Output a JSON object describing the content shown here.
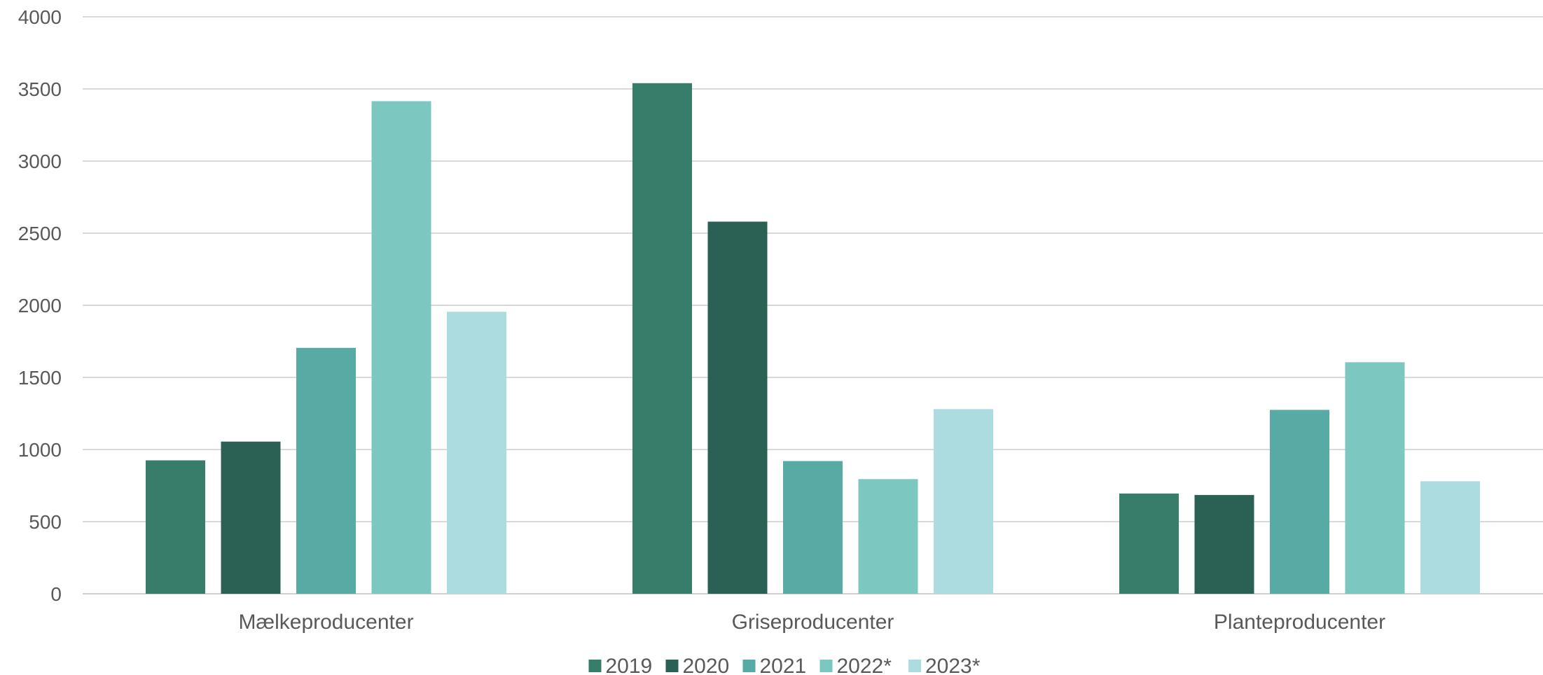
{
  "chart_data": {
    "type": "bar",
    "categories": [
      "Mælkeproducenter",
      "Griseproducenter",
      "Planteproducenter"
    ],
    "series": [
      {
        "name": "2019",
        "color": "#377d6a",
        "values": [
          925,
          3540,
          695
        ]
      },
      {
        "name": "2020",
        "color": "#2a6154",
        "values": [
          1055,
          2580,
          685
        ]
      },
      {
        "name": "2021",
        "color": "#58aaa4",
        "values": [
          1705,
          920,
          1275
        ]
      },
      {
        "name": "2022*",
        "color": "#7cc8c1",
        "values": [
          3415,
          795,
          1605
        ]
      },
      {
        "name": "2023*",
        "color": "#acdcdf",
        "values": [
          1955,
          1280,
          780
        ]
      }
    ],
    "yticks": [
      0,
      500,
      1000,
      1500,
      2000,
      2500,
      3000,
      3500,
      4000
    ],
    "ylim": [
      0,
      4000
    ],
    "title": "",
    "xlabel": "",
    "ylabel": "",
    "grid": true,
    "legend": "bottom-center"
  }
}
